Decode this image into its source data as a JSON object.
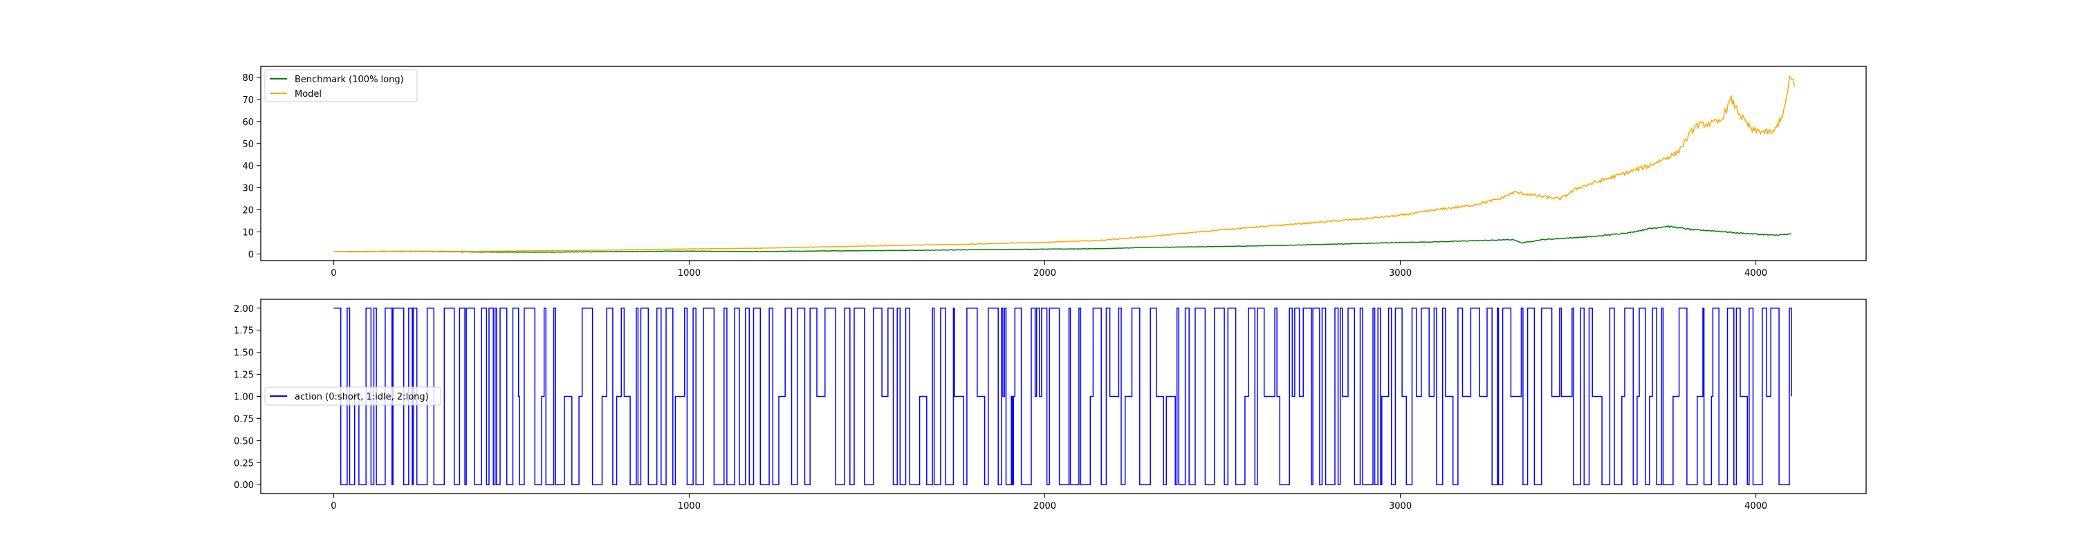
{
  "chart_data": [
    {
      "type": "line",
      "title": "",
      "xlabel": "",
      "ylabel": "",
      "xlim": [
        -205,
        4310
      ],
      "ylim": [
        -3,
        85
      ],
      "x_ticks": [
        0,
        1000,
        2000,
        3000,
        4000
      ],
      "y_ticks": [
        0,
        10,
        20,
        30,
        40,
        50,
        60,
        70,
        80
      ],
      "grid": false,
      "legend_position": "upper-left",
      "series": [
        {
          "name": "Benchmark (100% long)",
          "color": "#008000",
          "x": [
            0,
            200,
            400,
            600,
            800,
            1000,
            1200,
            1400,
            1600,
            1800,
            2000,
            2150,
            2300,
            2500,
            2700,
            2900,
            3000,
            3100,
            3250,
            3320,
            3340,
            3400,
            3550,
            3650,
            3700,
            3750,
            3780,
            3820,
            3880,
            3950,
            4000,
            4050,
            4100
          ],
          "values": [
            1,
            1.2,
            0.9,
            0.8,
            1.1,
            1.3,
            1.1,
            1.4,
            1.6,
            1.9,
            2.2,
            2.4,
            3,
            3.4,
            4,
            4.8,
            5.2,
            5.5,
            6.2,
            6.5,
            5,
            6.5,
            8,
            9.8,
            11.5,
            12.5,
            12,
            11,
            10.5,
            9.5,
            9,
            8.5,
            9
          ]
        },
        {
          "name": "Model",
          "color": "#ffa500",
          "x": [
            0,
            200,
            400,
            600,
            800,
            1000,
            1200,
            1400,
            1600,
            1800,
            2000,
            2150,
            2300,
            2500,
            2700,
            2900,
            3000,
            3100,
            3200,
            3280,
            3320,
            3400,
            3450,
            3500,
            3600,
            3700,
            3780,
            3830,
            3900,
            3930,
            3960,
            3990,
            4050,
            4080,
            4095,
            4110
          ],
          "values": [
            1,
            1.3,
            1.2,
            1.5,
            1.8,
            2.3,
            2.6,
            3.3,
            3.9,
            4.5,
            5.3,
            6.1,
            8,
            11,
            13.5,
            16,
            17.5,
            20,
            22,
            25,
            28,
            26,
            25,
            30,
            35,
            40,
            46,
            58,
            60,
            70,
            62,
            56,
            55,
            65,
            80,
            76
          ]
        }
      ]
    },
    {
      "type": "line",
      "title": "",
      "xlabel": "",
      "ylabel": "",
      "xlim": [
        -205,
        4310
      ],
      "ylim": [
        -0.1,
        2.1
      ],
      "x_ticks": [
        0,
        1000,
        2000,
        3000,
        4000
      ],
      "y_ticks": [
        "0.00",
        "0.25",
        "0.50",
        "0.75",
        "1.00",
        "1.25",
        "1.50",
        "1.75",
        "2.00"
      ],
      "grid": false,
      "legend_position": "center-left",
      "series": [
        {
          "name": "action (0:short, 1:idle, 2:long)",
          "color": "#0000ff",
          "x_range": [
            0,
            4100
          ],
          "values_set": [
            0,
            1,
            2
          ]
        }
      ]
    }
  ]
}
